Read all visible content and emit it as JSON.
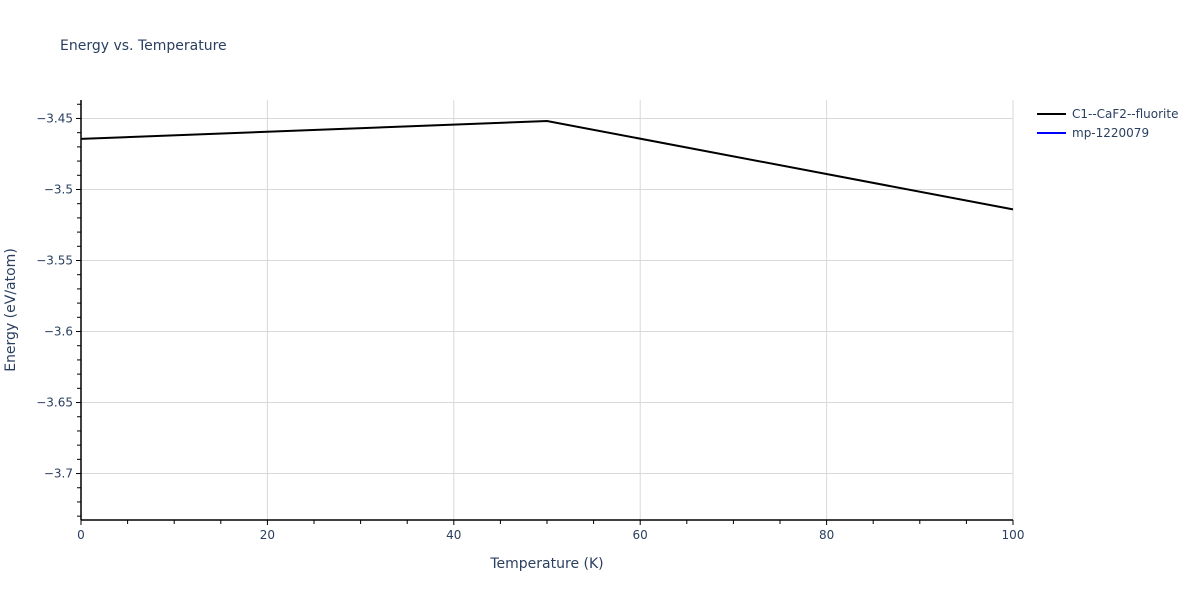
{
  "chart_data": {
    "type": "line",
    "title": "Energy vs. Temperature",
    "xlabel": "Temperature (K)",
    "ylabel": "Energy (eV/atom)",
    "xlim": [
      0,
      100
    ],
    "ylim": [
      -3.7327,
      -3.437
    ],
    "grid": true,
    "legend_position": "top-right",
    "x_ticks": [
      "0",
      "20",
      "40",
      "60",
      "80",
      "100"
    ],
    "y_ticks": [
      "−3.45",
      "−3.5",
      "−3.55",
      "−3.6",
      "−3.65",
      "−3.7"
    ],
    "series": [
      {
        "name": "C1--CaF2--fluorite",
        "color": "#000000",
        "x": [
          0,
          50,
          100
        ],
        "values": [
          -3.4644,
          -3.4518,
          -3.514
        ]
      },
      {
        "name": "mp-1220079",
        "color": "#0000ff",
        "x": [],
        "values": []
      }
    ]
  }
}
